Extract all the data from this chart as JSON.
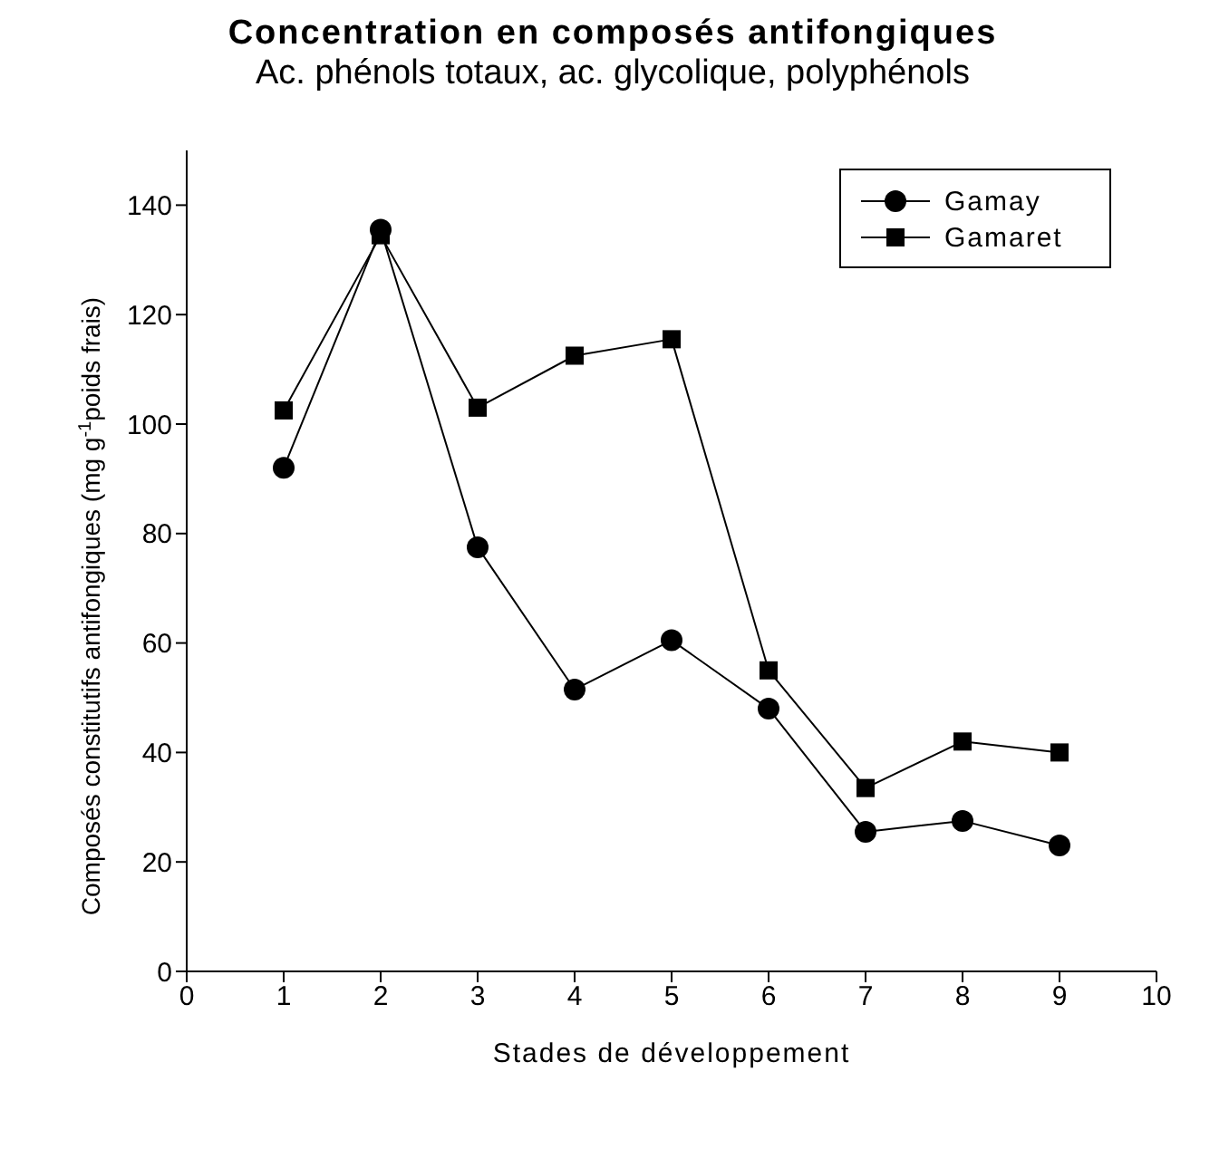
{
  "chart_data": {
    "type": "line",
    "title": "Concentration en composés antifongiques",
    "subtitle": "Ac. phénols totaux, ac. glycolique, polyphénols",
    "xlabel": "Stades de développement",
    "ylabel": "Composés constitutifs antifongiques (mg g$^{-1}$poids frais)",
    "x": [
      1,
      2,
      3,
      4,
      5,
      6,
      7,
      8,
      9
    ],
    "series": [
      {
        "name": "Gamay",
        "color": "#000000",
        "marker": "circle",
        "values": [
          92,
          135.5,
          77.5,
          51.5,
          60.5,
          48,
          25.5,
          27.5,
          23
        ]
      },
      {
        "name": "Gamaret",
        "color": "#000000",
        "marker": "square",
        "values": [
          102.5,
          134.5,
          103,
          112.5,
          115.5,
          55,
          33.5,
          42,
          40
        ]
      }
    ],
    "xlim": [
      0,
      10
    ],
    "xticks": [
      0,
      1,
      2,
      3,
      4,
      5,
      6,
      7,
      8,
      9,
      10
    ],
    "ylim": [
      0,
      150
    ],
    "yticks": [
      0,
      20,
      40,
      60,
      80,
      100,
      120,
      140
    ],
    "grid": false,
    "legend": "top right"
  }
}
